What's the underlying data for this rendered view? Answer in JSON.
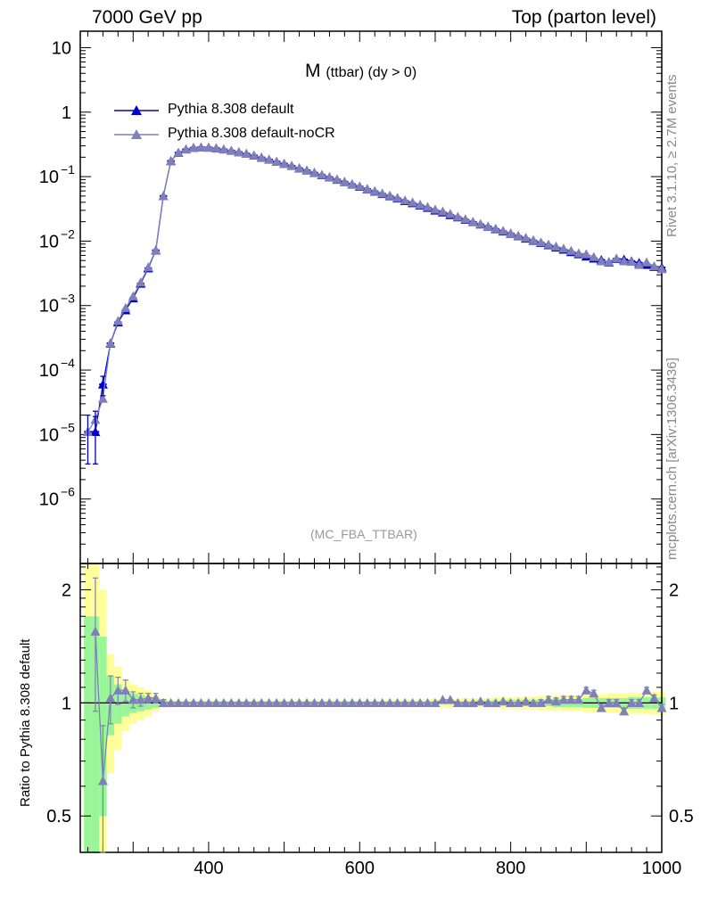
{
  "header": {
    "left": "7000 GeV pp",
    "right": "Top (parton level)",
    "side_rivet": "Rivet 3.1.10, ≥ 2.7M events",
    "side_mcplots": "mcplots.cern.ch [arXiv:1306.3436]"
  },
  "plot": {
    "title_main": "M",
    "title_sub": "(ttbar) (dy > 0)",
    "watermark": "(MC_FBA_TTBAR)",
    "ratio_ylabel": "Ratio to Pythia 8.308 default"
  },
  "legend": {
    "items": [
      {
        "label": "Pythia 8.308 default",
        "color": "#0000cc"
      },
      {
        "label": "Pythia 8.308 default-noCR",
        "color": "#8080b8"
      }
    ]
  },
  "chart_data": {
    "type": "line",
    "x_range": [
      230,
      1000
    ],
    "x_ticks": [
      "400",
      "600",
      "800",
      "1000"
    ],
    "main": {
      "y_scale": "log",
      "y_range": [
        1e-07,
        18
      ],
      "y_tick_labels": [
        {
          "v": 10,
          "t": "10"
        },
        {
          "v": 1,
          "t": "1"
        },
        {
          "v": 0.1,
          "t": "10",
          "e": "−1"
        },
        {
          "v": 0.01,
          "t": "10",
          "e": "−2"
        },
        {
          "v": 0.001,
          "t": "10",
          "e": "−3"
        },
        {
          "v": 0.0001,
          "t": "10",
          "e": "−4"
        },
        {
          "v": 1e-05,
          "t": "10",
          "e": "−5"
        },
        {
          "v": 1e-06,
          "t": "10",
          "e": "−6"
        }
      ]
    },
    "ratio": {
      "y_scale": "log",
      "y_range": [
        0.4,
        2.35
      ],
      "y_tick_labels": [
        {
          "v": 2,
          "t": "2"
        },
        {
          "v": 1,
          "t": "1"
        },
        {
          "v": 0.5,
          "t": "0.5"
        }
      ]
    },
    "series": [
      {
        "name": "Pythia 8.308 default",
        "color": "#0000cc",
        "x": [
          240,
          250,
          260,
          270,
          280,
          290,
          300,
          310,
          320,
          330,
          340,
          350,
          360,
          370,
          380,
          390,
          400,
          410,
          420,
          430,
          440,
          450,
          460,
          470,
          480,
          490,
          500,
          510,
          520,
          530,
          540,
          550,
          560,
          570,
          580,
          590,
          600,
          610,
          620,
          630,
          640,
          650,
          660,
          670,
          680,
          690,
          700,
          710,
          720,
          730,
          740,
          750,
          760,
          770,
          780,
          790,
          800,
          810,
          820,
          830,
          840,
          850,
          860,
          870,
          880,
          890,
          900,
          910,
          920,
          930,
          940,
          950,
          960,
          970,
          980,
          990,
          1000
        ],
        "y": [
          1.1e-05,
          1.1e-05,
          6e-05,
          0.00026,
          0.00055,
          0.00085,
          0.0013,
          0.0022,
          0.0038,
          0.0072,
          0.05,
          0.175,
          0.235,
          0.265,
          0.28,
          0.285,
          0.283,
          0.276,
          0.265,
          0.253,
          0.24,
          0.227,
          0.213,
          0.198,
          0.184,
          0.171,
          0.159,
          0.147,
          0.135,
          0.125,
          0.115,
          0.106,
          0.098,
          0.09,
          0.083,
          0.076,
          0.07,
          0.064,
          0.059,
          0.054,
          0.05,
          0.046,
          0.042,
          0.039,
          0.036,
          0.033,
          0.03,
          0.028,
          0.0255,
          0.0235,
          0.0215,
          0.0198,
          0.0182,
          0.0168,
          0.0154,
          0.0142,
          0.0131,
          0.012,
          0.011,
          0.0102,
          0.0094,
          0.0087,
          0.008,
          0.0074,
          0.0068,
          0.0063,
          0.0058,
          0.0054,
          0.0051,
          0.0047,
          0.0053,
          0.0052,
          0.0049,
          0.0046,
          0.0043,
          0.004,
          0.0039
        ]
      },
      {
        "name": "Pythia 8.308 default-noCR",
        "color": "#8080b8",
        "x": [
          240,
          250,
          260,
          270,
          280,
          290,
          300,
          310,
          320,
          330,
          340,
          350,
          360,
          370,
          380,
          390,
          400,
          410,
          420,
          430,
          440,
          450,
          460,
          470,
          480,
          490,
          500,
          510,
          520,
          530,
          540,
          550,
          560,
          570,
          580,
          590,
          600,
          610,
          620,
          630,
          640,
          650,
          660,
          670,
          680,
          690,
          700,
          710,
          720,
          730,
          740,
          750,
          760,
          770,
          780,
          790,
          800,
          810,
          820,
          830,
          840,
          850,
          860,
          870,
          880,
          890,
          900,
          910,
          920,
          930,
          940,
          950,
          960,
          970,
          980,
          990,
          1000
        ],
        "y": [
          1.1e-05,
          1.7e-05,
          3.6e-05,
          0.000265,
          0.00058,
          0.00092,
          0.0014,
          0.0023,
          0.00395,
          0.0073,
          0.05,
          0.176,
          0.236,
          0.266,
          0.28,
          0.285,
          0.283,
          0.277,
          0.266,
          0.254,
          0.241,
          0.227,
          0.214,
          0.199,
          0.185,
          0.171,
          0.16,
          0.148,
          0.136,
          0.126,
          0.116,
          0.107,
          0.099,
          0.091,
          0.084,
          0.077,
          0.071,
          0.065,
          0.06,
          0.055,
          0.051,
          0.047,
          0.043,
          0.04,
          0.037,
          0.034,
          0.031,
          0.029,
          0.0265,
          0.024,
          0.022,
          0.02,
          0.0185,
          0.017,
          0.0157,
          0.0145,
          0.0133,
          0.0122,
          0.0113,
          0.0104,
          0.0096,
          0.0089,
          0.0083,
          0.0077,
          0.0071,
          0.0065,
          0.0063,
          0.0057,
          0.0049,
          0.0048,
          0.0054,
          0.0049,
          0.0048,
          0.0043,
          0.0047,
          0.0041,
          0.0037
        ],
        "ratio": [
          null,
          1.55,
          0.62,
          1.03,
          1.08,
          1.08,
          1.02,
          1.02,
          1.03,
          1.03,
          1.0,
          1.0,
          1.0,
          1.0,
          1.0,
          1.0,
          1.0,
          1.0,
          1.0,
          1.0,
          1.0,
          1.0,
          1.0,
          1.0,
          1.0,
          1.0,
          1.0,
          1.0,
          1.0,
          1.0,
          1.0,
          1.0,
          1.0,
          1.0,
          1.0,
          1.0,
          1.0,
          1.0,
          1.0,
          1.0,
          1.0,
          1.0,
          1.0,
          1.0,
          1.0,
          1.0,
          1.0,
          1.02,
          1.02,
          1.0,
          1.0,
          1.0,
          1.01,
          1.0,
          1.0,
          1.01,
          1.0,
          1.0,
          1.01,
          1.0,
          1.0,
          1.02,
          1.01,
          1.02,
          1.02,
          1.02,
          1.08,
          1.06,
          0.97,
          1.0,
          1.0,
          0.95,
          1.0,
          1.0,
          1.08,
          1.03,
          0.97
        ],
        "ratio_err": [
          0,
          0.6,
          0.25,
          0.15,
          0.09,
          0.07,
          0.05,
          0.04,
          0.03,
          0.03,
          0.02,
          0.01,
          0.01,
          0.01,
          0.01,
          0.01,
          0.01,
          0.01,
          0.01,
          0.01,
          0.01,
          0.01,
          0.01,
          0.01,
          0.01,
          0.01,
          0.01,
          0.01,
          0.01,
          0.01,
          0.01,
          0.01,
          0.01,
          0.01,
          0.01,
          0.01,
          0.01,
          0.01,
          0.01,
          0.01,
          0.01,
          0.01,
          0.01,
          0.01,
          0.01,
          0.01,
          0.01,
          0.01,
          0.01,
          0.01,
          0.01,
          0.01,
          0.01,
          0.01,
          0.01,
          0.01,
          0.01,
          0.01,
          0.01,
          0.01,
          0.02,
          0.02,
          0.02,
          0.02,
          0.02,
          0.02,
          0.02,
          0.02,
          0.02,
          0.02,
          0.02,
          0.02,
          0.02,
          0.02,
          0.02,
          0.02,
          0.02
        ]
      }
    ],
    "bands": {
      "green_color": "#98f598",
      "yellow_color": "#ffff99",
      "x": [
        240,
        250,
        260,
        270,
        280,
        290,
        300,
        310,
        320,
        330,
        340,
        350,
        360,
        370,
        380,
        390,
        400,
        410,
        420,
        430,
        440,
        450,
        460,
        470,
        480,
        490,
        500,
        510,
        520,
        530,
        540,
        550,
        560,
        570,
        580,
        590,
        600,
        610,
        620,
        630,
        640,
        650,
        660,
        670,
        680,
        690,
        700,
        710,
        720,
        730,
        740,
        750,
        760,
        770,
        780,
        790,
        800,
        810,
        820,
        830,
        840,
        850,
        860,
        870,
        880,
        890,
        900,
        910,
        920,
        930,
        940,
        950,
        960,
        970,
        980,
        990,
        1000
      ],
      "green_halfwidth": [
        0.7,
        0.7,
        0.5,
        0.18,
        0.12,
        0.08,
        0.06,
        0.05,
        0.04,
        0.03,
        0.02,
        0.01,
        0.01,
        0.01,
        0.01,
        0.01,
        0.01,
        0.01,
        0.01,
        0.01,
        0.01,
        0.01,
        0.01,
        0.01,
        0.01,
        0.01,
        0.01,
        0.01,
        0.01,
        0.01,
        0.01,
        0.01,
        0.01,
        0.01,
        0.01,
        0.01,
        0.01,
        0.01,
        0.01,
        0.01,
        0.01,
        0.01,
        0.01,
        0.01,
        0.01,
        0.01,
        0.01,
        0.01,
        0.01,
        0.01,
        0.01,
        0.01,
        0.015,
        0.015,
        0.015,
        0.015,
        0.02,
        0.02,
        0.02,
        0.02,
        0.02,
        0.02,
        0.025,
        0.025,
        0.025,
        0.025,
        0.03,
        0.03,
        0.03,
        0.03,
        0.03,
        0.03,
        0.035,
        0.035,
        0.035,
        0.035,
        0.035
      ],
      "yellow_halfwidth": [
        1.4,
        1.4,
        1.0,
        0.35,
        0.25,
        0.16,
        0.12,
        0.1,
        0.08,
        0.05,
        0.03,
        0.02,
        0.015,
        0.015,
        0.015,
        0.015,
        0.015,
        0.015,
        0.015,
        0.015,
        0.015,
        0.015,
        0.015,
        0.015,
        0.015,
        0.015,
        0.015,
        0.015,
        0.015,
        0.015,
        0.015,
        0.015,
        0.015,
        0.015,
        0.015,
        0.015,
        0.015,
        0.015,
        0.015,
        0.015,
        0.02,
        0.02,
        0.02,
        0.02,
        0.02,
        0.02,
        0.025,
        0.025,
        0.025,
        0.025,
        0.03,
        0.03,
        0.03,
        0.03,
        0.035,
        0.035,
        0.035,
        0.04,
        0.04,
        0.04,
        0.045,
        0.045,
        0.045,
        0.05,
        0.05,
        0.05,
        0.055,
        0.055,
        0.055,
        0.06,
        0.06,
        0.06,
        0.065,
        0.065,
        0.065,
        0.07,
        0.07
      ]
    }
  }
}
